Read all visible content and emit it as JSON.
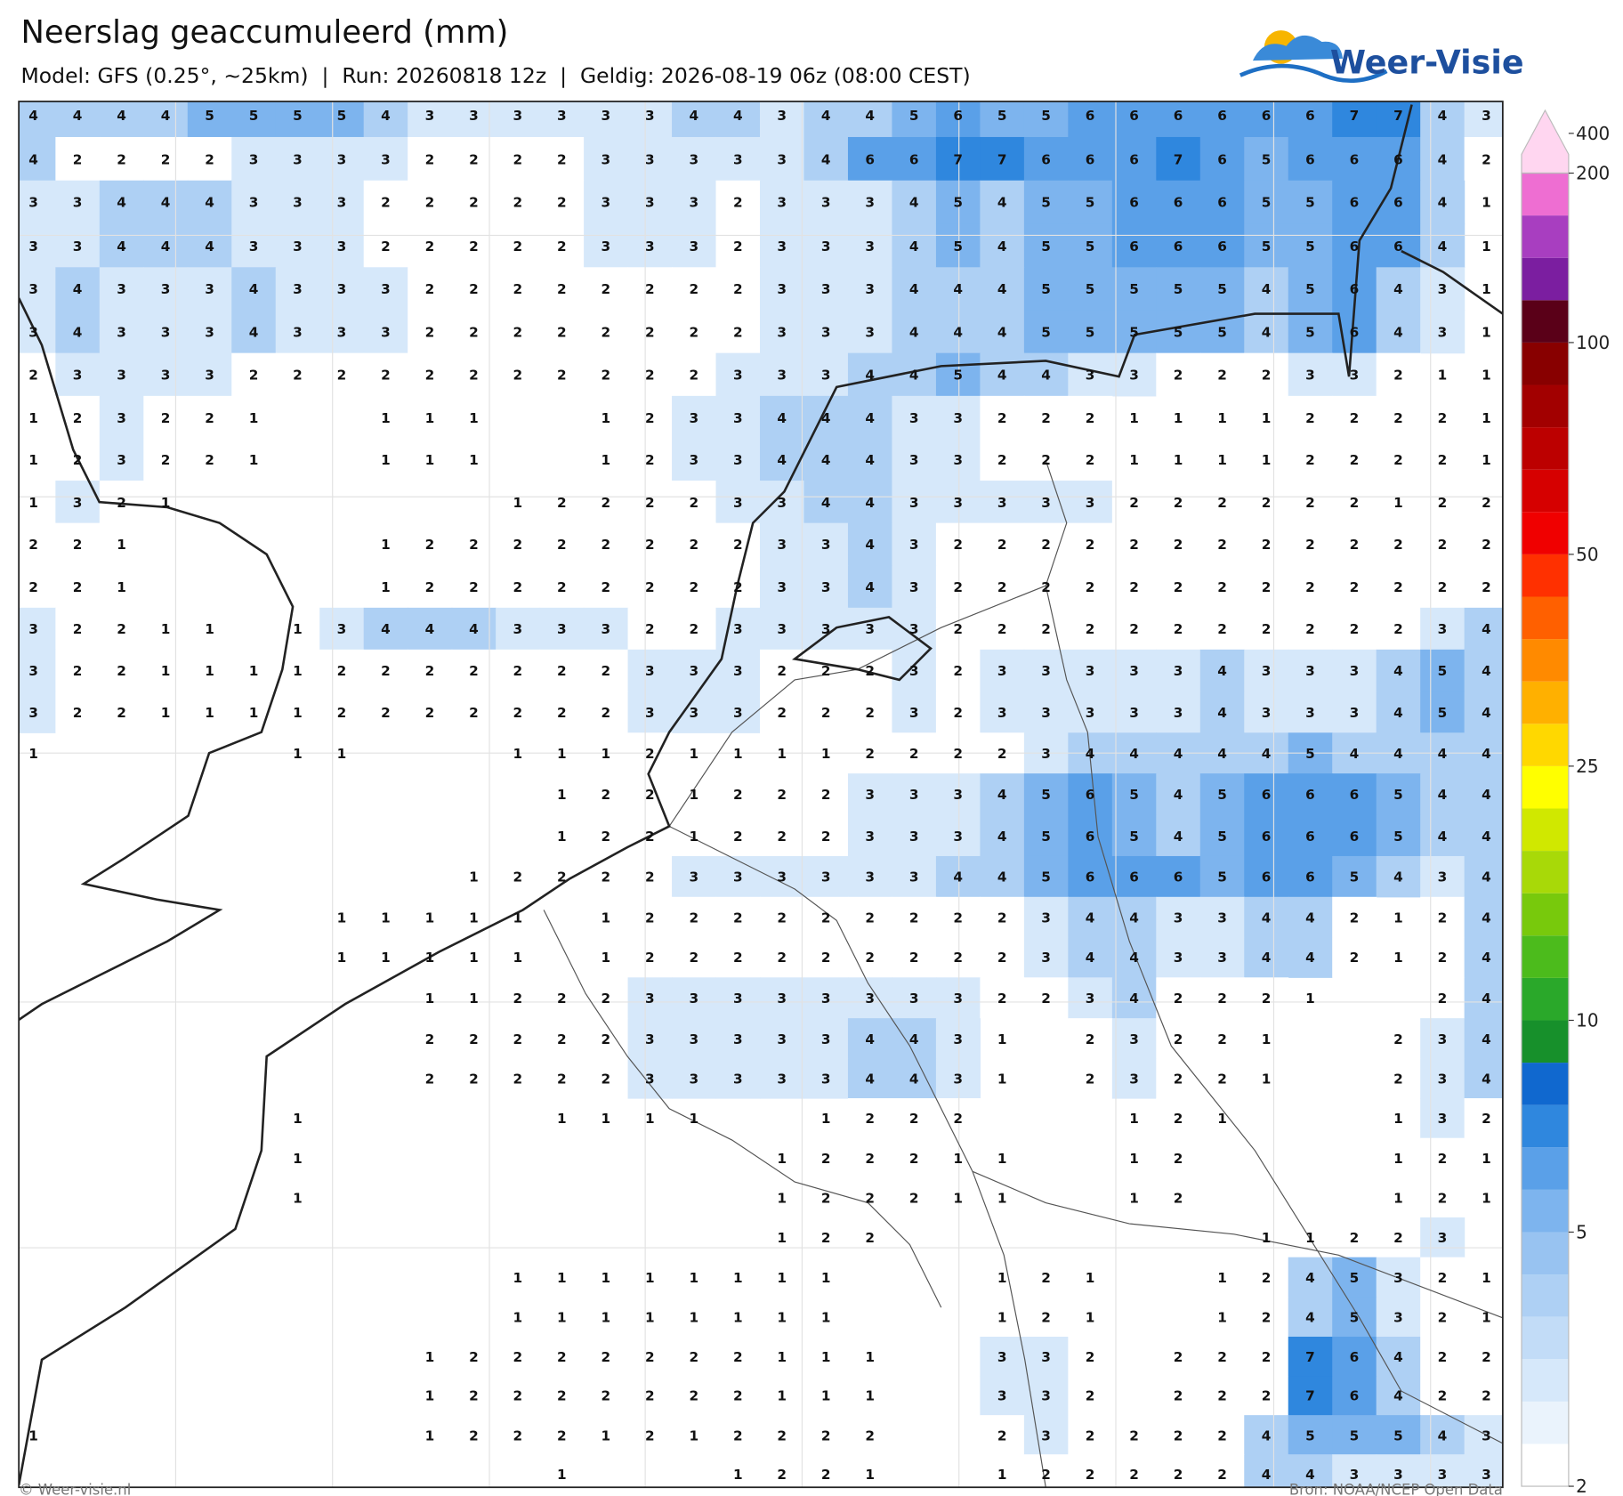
{
  "header": {
    "title": "Neerslag geaccumuleerd (mm)",
    "subtitle": "Model: GFS (0.25°, ~25km)  |  Run: 20260818 12z  |  Geldig: 2026-08-19 06z (08:00 CEST)",
    "logo": "Weer-Visie"
  },
  "map": {
    "values": [
      [
        4,
        4,
        4,
        4,
        5,
        5,
        5,
        5,
        4,
        3,
        3,
        3,
        3,
        3,
        3,
        4,
        4,
        3,
        4,
        4,
        5,
        6,
        5,
        5,
        6,
        6,
        6,
        6,
        6,
        6,
        7,
        7,
        4,
        3
      ],
      [
        4,
        2,
        2,
        2,
        2,
        3,
        3,
        3,
        3,
        2,
        2,
        2,
        2,
        3,
        3,
        3,
        3,
        3,
        4,
        6,
        6,
        7,
        7,
        6,
        6,
        6,
        7,
        6,
        5,
        6,
        6,
        6,
        4,
        2
      ],
      [
        3,
        3,
        4,
        4,
        4,
        3,
        3,
        3,
        2,
        2,
        2,
        2,
        2,
        3,
        3,
        3,
        2,
        3,
        3,
        3,
        4,
        5,
        4,
        5,
        5,
        6,
        6,
        6,
        5,
        5,
        6,
        6,
        4,
        1
      ],
      [
        3,
        3,
        4,
        4,
        4,
        3,
        3,
        3,
        2,
        2,
        2,
        2,
        2,
        3,
        3,
        3,
        2,
        3,
        3,
        3,
        4,
        5,
        4,
        5,
        5,
        6,
        6,
        6,
        5,
        5,
        6,
        6,
        4,
        1
      ],
      [
        3,
        4,
        3,
        3,
        3,
        4,
        3,
        3,
        3,
        2,
        2,
        2,
        2,
        2,
        2,
        2,
        2,
        3,
        3,
        3,
        4,
        4,
        4,
        5,
        5,
        5,
        5,
        5,
        4,
        5,
        6,
        4,
        3,
        1
      ],
      [
        3,
        4,
        3,
        3,
        3,
        4,
        3,
        3,
        3,
        2,
        2,
        2,
        2,
        2,
        2,
        2,
        2,
        3,
        3,
        3,
        4,
        4,
        4,
        5,
        5,
        5,
        5,
        5,
        4,
        5,
        6,
        4,
        3,
        1
      ],
      [
        2,
        3,
        3,
        3,
        3,
        2,
        2,
        2,
        2,
        2,
        2,
        2,
        2,
        2,
        2,
        2,
        3,
        3,
        3,
        4,
        4,
        5,
        4,
        4,
        3,
        3,
        2,
        2,
        2,
        3,
        3,
        2,
        1,
        1
      ],
      [
        1,
        2,
        3,
        2,
        2,
        1,
        null,
        null,
        1,
        1,
        1,
        null,
        null,
        1,
        2,
        3,
        3,
        4,
        4,
        4,
        3,
        3,
        2,
        2,
        2,
        1,
        1,
        1,
        1,
        2,
        2,
        2,
        2,
        1
      ],
      [
        1,
        2,
        3,
        2,
        2,
        1,
        null,
        null,
        1,
        1,
        1,
        null,
        null,
        1,
        2,
        3,
        3,
        4,
        4,
        4,
        3,
        3,
        2,
        2,
        2,
        1,
        1,
        1,
        1,
        2,
        2,
        2,
        2,
        1
      ],
      [
        1,
        3,
        2,
        1,
        null,
        null,
        null,
        null,
        null,
        null,
        null,
        1,
        2,
        2,
        2,
        2,
        3,
        3,
        4,
        4,
        3,
        3,
        3,
        3,
        3,
        2,
        2,
        2,
        2,
        2,
        2,
        1,
        2,
        2
      ],
      [
        2,
        2,
        1,
        null,
        null,
        null,
        null,
        null,
        1,
        2,
        2,
        2,
        2,
        2,
        2,
        2,
        2,
        3,
        3,
        4,
        3,
        2,
        2,
        2,
        2,
        2,
        2,
        2,
        2,
        2,
        2,
        2,
        2,
        2
      ],
      [
        2,
        2,
        1,
        null,
        null,
        null,
        null,
        null,
        1,
        2,
        2,
        2,
        2,
        2,
        2,
        2,
        2,
        3,
        3,
        4,
        3,
        2,
        2,
        2,
        2,
        2,
        2,
        2,
        2,
        2,
        2,
        2,
        2,
        2
      ],
      [
        3,
        2,
        2,
        1,
        1,
        null,
        1,
        3,
        4,
        4,
        4,
        3,
        3,
        3,
        2,
        2,
        3,
        3,
        3,
        3,
        3,
        2,
        2,
        2,
        2,
        2,
        2,
        2,
        2,
        2,
        2,
        2,
        3,
        4
      ],
      [
        3,
        2,
        2,
        1,
        1,
        1,
        1,
        2,
        2,
        2,
        2,
        2,
        2,
        2,
        3,
        3,
        3,
        2,
        2,
        2,
        3,
        2,
        3,
        3,
        3,
        3,
        3,
        4,
        3,
        3,
        3,
        4,
        5,
        4
      ],
      [
        3,
        2,
        2,
        1,
        1,
        1,
        1,
        2,
        2,
        2,
        2,
        2,
        2,
        2,
        3,
        3,
        3,
        2,
        2,
        2,
        3,
        2,
        3,
        3,
        3,
        3,
        3,
        4,
        3,
        3,
        3,
        4,
        5,
        4
      ],
      [
        1,
        null,
        null,
        null,
        null,
        null,
        1,
        1,
        null,
        null,
        null,
        1,
        1,
        1,
        2,
        1,
        1,
        1,
        1,
        2,
        2,
        2,
        2,
        3,
        4,
        4,
        4,
        4,
        4,
        5,
        4,
        4,
        4,
        4
      ],
      [
        null,
        null,
        null,
        null,
        null,
        null,
        null,
        null,
        null,
        null,
        null,
        null,
        1,
        2,
        2,
        1,
        2,
        2,
        2,
        3,
        3,
        3,
        4,
        5,
        6,
        5,
        4,
        5,
        6,
        6,
        6,
        5,
        4,
        4
      ],
      [
        null,
        null,
        null,
        null,
        null,
        null,
        null,
        null,
        null,
        null,
        null,
        null,
        1,
        2,
        2,
        1,
        2,
        2,
        2,
        3,
        3,
        3,
        4,
        5,
        6,
        5,
        4,
        5,
        6,
        6,
        6,
        5,
        4,
        4
      ],
      [
        null,
        null,
        null,
        null,
        null,
        null,
        null,
        null,
        null,
        null,
        1,
        2,
        2,
        2,
        2,
        3,
        3,
        3,
        3,
        3,
        3,
        4,
        4,
        5,
        6,
        6,
        6,
        5,
        6,
        6,
        5,
        4,
        3,
        4
      ],
      [
        null,
        null,
        null,
        null,
        null,
        null,
        null,
        1,
        1,
        1,
        1,
        1,
        null,
        1,
        2,
        2,
        2,
        2,
        2,
        2,
        2,
        2,
        2,
        3,
        4,
        4,
        3,
        3,
        4,
        4,
        2,
        1,
        2,
        4
      ],
      [
        null,
        null,
        null,
        null,
        null,
        null,
        null,
        1,
        1,
        1,
        1,
        1,
        null,
        1,
        2,
        2,
        2,
        2,
        2,
        2,
        2,
        2,
        2,
        3,
        4,
        4,
        3,
        3,
        4,
        4,
        2,
        1,
        2,
        4
      ],
      [
        null,
        null,
        null,
        null,
        null,
        null,
        null,
        null,
        null,
        1,
        1,
        2,
        2,
        2,
        3,
        3,
        3,
        3,
        3,
        3,
        3,
        3,
        2,
        2,
        3,
        4,
        2,
        2,
        2,
        1,
        null,
        null,
        2,
        4
      ],
      [
        null,
        null,
        null,
        null,
        null,
        null,
        null,
        null,
        null,
        2,
        2,
        2,
        2,
        2,
        3,
        3,
        3,
        3,
        3,
        4,
        4,
        3,
        1,
        null,
        2,
        3,
        2,
        2,
        1,
        null,
        null,
        2,
        3,
        4
      ],
      [
        null,
        null,
        null,
        null,
        null,
        null,
        null,
        null,
        null,
        2,
        2,
        2,
        2,
        2,
        3,
        3,
        3,
        3,
        3,
        4,
        4,
        3,
        1,
        null,
        2,
        3,
        2,
        2,
        1,
        null,
        null,
        2,
        3,
        4
      ],
      [
        null,
        null,
        null,
        null,
        null,
        null,
        1,
        null,
        null,
        null,
        null,
        null,
        1,
        1,
        1,
        1,
        null,
        null,
        1,
        2,
        2,
        2,
        null,
        null,
        null,
        1,
        2,
        1,
        null,
        null,
        null,
        1,
        3,
        2
      ],
      [
        null,
        null,
        null,
        null,
        null,
        null,
        1,
        null,
        null,
        null,
        null,
        null,
        null,
        null,
        null,
        null,
        null,
        1,
        2,
        2,
        2,
        1,
        1,
        null,
        null,
        1,
        2,
        null,
        null,
        null,
        null,
        1,
        2,
        1
      ],
      [
        null,
        null,
        null,
        null,
        null,
        null,
        1,
        null,
        null,
        null,
        null,
        null,
        null,
        null,
        null,
        null,
        null,
        1,
        2,
        2,
        2,
        1,
        1,
        null,
        null,
        1,
        2,
        null,
        null,
        null,
        null,
        1,
        2,
        1
      ],
      [
        null,
        null,
        null,
        null,
        null,
        null,
        null,
        null,
        null,
        null,
        null,
        null,
        null,
        null,
        null,
        null,
        null,
        1,
        2,
        2,
        null,
        null,
        null,
        null,
        null,
        null,
        null,
        null,
        1,
        1,
        2,
        2,
        3,
        null
      ],
      [
        null,
        null,
        null,
        null,
        null,
        null,
        null,
        null,
        null,
        null,
        null,
        1,
        1,
        1,
        1,
        1,
        1,
        1,
        1,
        null,
        null,
        null,
        1,
        2,
        1,
        null,
        null,
        1,
        2,
        4,
        5,
        3,
        2,
        1
      ],
      [
        null,
        null,
        null,
        null,
        null,
        null,
        null,
        null,
        null,
        null,
        null,
        1,
        1,
        1,
        1,
        1,
        1,
        1,
        1,
        null,
        null,
        null,
        1,
        2,
        1,
        null,
        null,
        1,
        2,
        4,
        5,
        3,
        2,
        1
      ],
      [
        null,
        null,
        null,
        null,
        null,
        null,
        null,
        null,
        null,
        1,
        2,
        2,
        2,
        2,
        2,
        2,
        2,
        1,
        1,
        1,
        null,
        null,
        3,
        3,
        2,
        null,
        2,
        2,
        2,
        7,
        6,
        4,
        2,
        2
      ],
      [
        null,
        null,
        null,
        null,
        null,
        null,
        null,
        null,
        null,
        1,
        2,
        2,
        2,
        2,
        2,
        2,
        2,
        1,
        1,
        1,
        null,
        null,
        3,
        3,
        2,
        null,
        2,
        2,
        2,
        7,
        6,
        4,
        2,
        2
      ],
      [
        1,
        null,
        null,
        null,
        null,
        null,
        null,
        null,
        null,
        1,
        2,
        2,
        2,
        1,
        2,
        1,
        2,
        2,
        2,
        2,
        null,
        null,
        2,
        3,
        2,
        2,
        2,
        2,
        4,
        5,
        5,
        5,
        4,
        3
      ],
      [
        null,
        null,
        null,
        null,
        null,
        null,
        null,
        null,
        null,
        null,
        null,
        null,
        1,
        null,
        null,
        null,
        1,
        2,
        2,
        1,
        null,
        null,
        1,
        2,
        2,
        2,
        2,
        2,
        4,
        4,
        3,
        3,
        3,
        3
      ]
    ]
  },
  "colorbar": {
    "levels": [
      2,
      2.5,
      3,
      3.5,
      4,
      4.5,
      5,
      6,
      7,
      8,
      9,
      10,
      12.5,
      15,
      17.5,
      20,
      22.5,
      25,
      30,
      35,
      40,
      45,
      50,
      60,
      70,
      80,
      90,
      100,
      125,
      150,
      175,
      200,
      400
    ],
    "colors": [
      "#ffffff",
      "#eaf3fc",
      "#d6e8fa",
      "#c2dcf7",
      "#aed0f4",
      "#98c3f1",
      "#7db4ee",
      "#5aa0e8",
      "#2f87de",
      "#1068cf",
      "#17902b",
      "#2aa82a",
      "#4cbb1c",
      "#78c90c",
      "#a8d908",
      "#d0e800",
      "#ffff00",
      "#ffd800",
      "#ffb000",
      "#ff8a00",
      "#ff6000",
      "#ff3000",
      "#f00000",
      "#d60000",
      "#bc0000",
      "#a20000",
      "#880000",
      "#5a0018",
      "#7b1ea0",
      "#a83ec0",
      "#ee6ed2",
      "#ffd6f0"
    ],
    "ticks": [
      2,
      5,
      10,
      25,
      50,
      100,
      200,
      400
    ]
  },
  "footer": {
    "left": "© Weer-visie.nl",
    "right": "Bron: NOAA/NCEP Open Data"
  }
}
